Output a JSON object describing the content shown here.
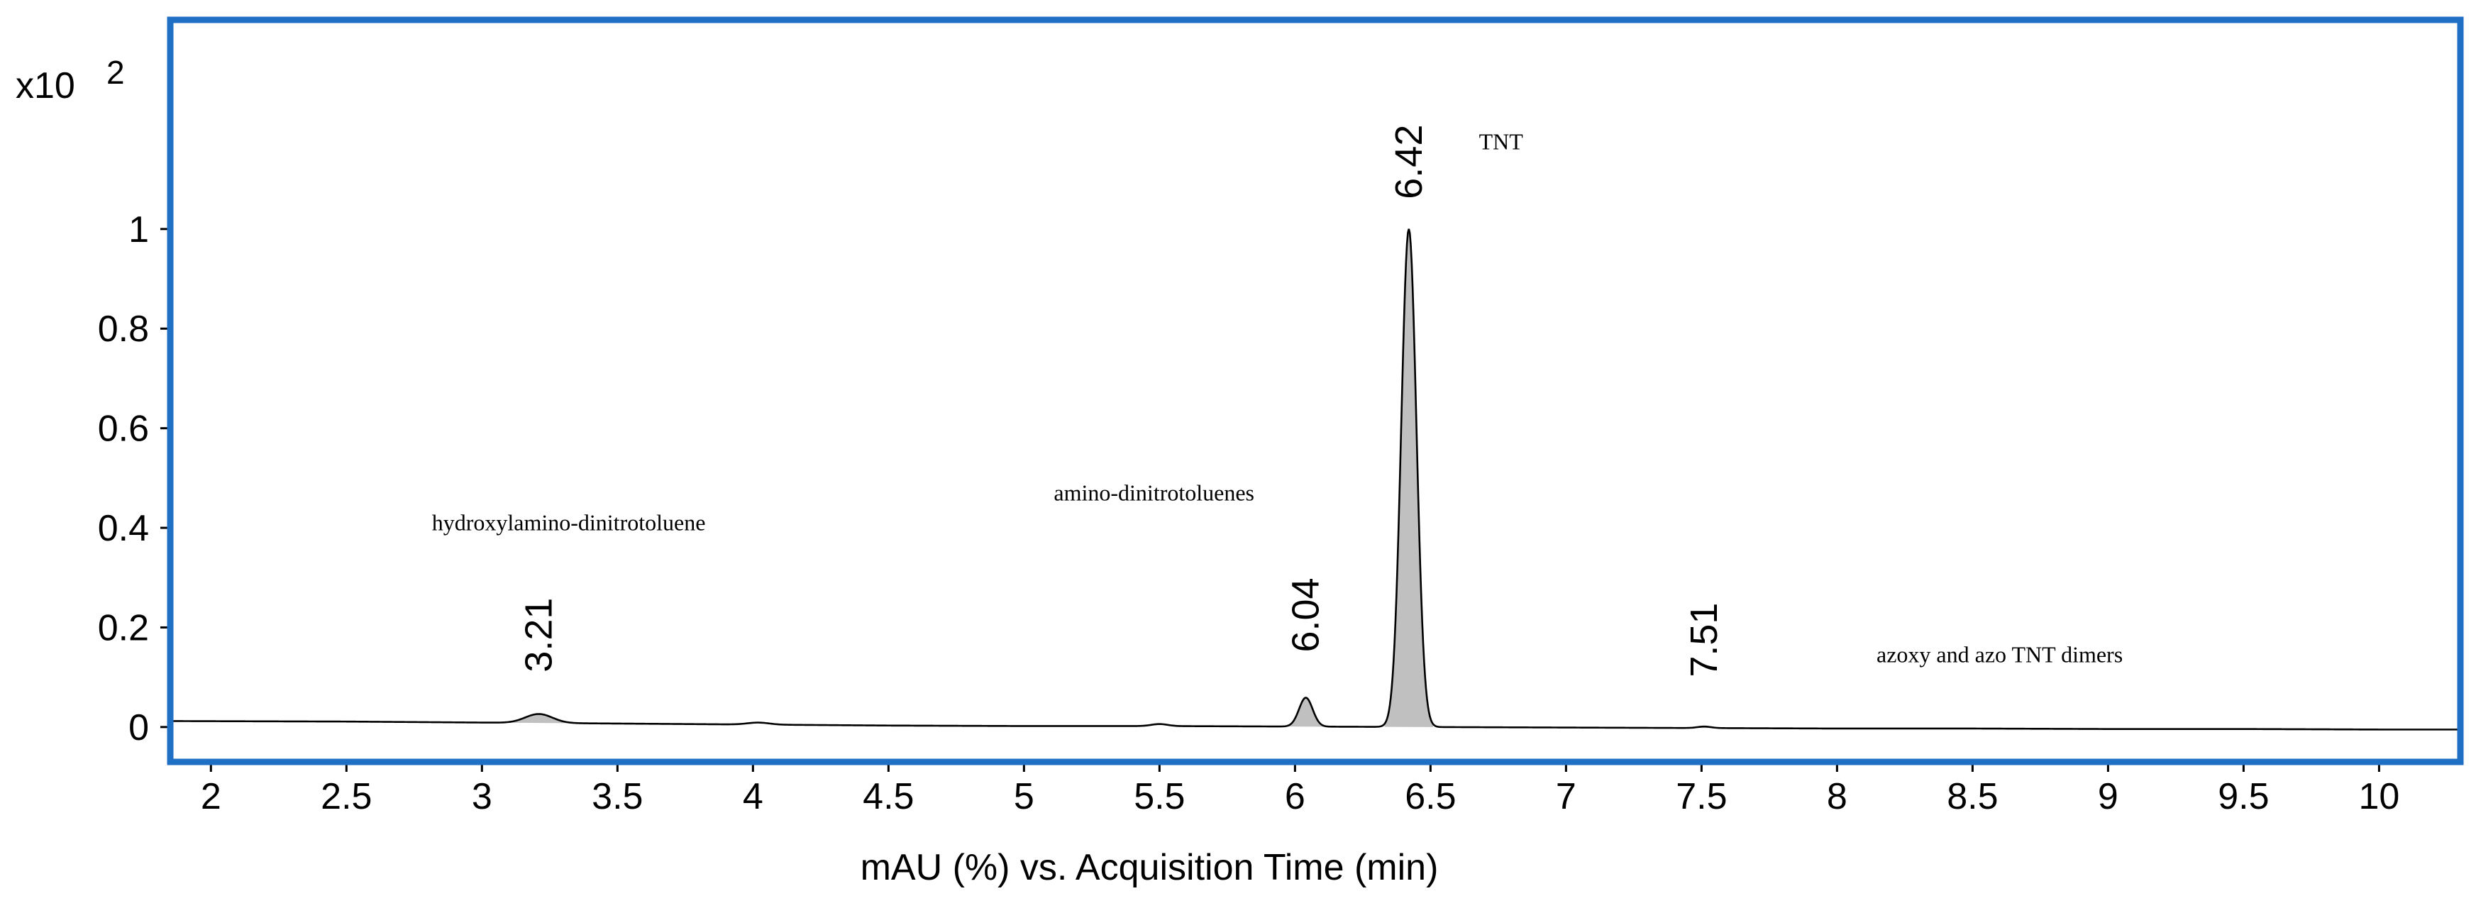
{
  "chart_data": {
    "type": "line",
    "title": "",
    "xlabel": "mAU (%) vs. Acquisition Time (min)",
    "ylabel": "",
    "y_multiplier_label": "x10",
    "y_multiplier_exponent": "2",
    "xlim": [
      1.85,
      10.3
    ],
    "ylim": [
      -0.07,
      1.42
    ],
    "x_ticks": [
      2,
      2.5,
      3,
      3.5,
      4,
      4.5,
      5,
      5.5,
      6,
      6.5,
      7,
      7.5,
      8,
      8.5,
      9,
      9.5,
      10
    ],
    "x_tick_labels": [
      "2",
      "2.5",
      "3",
      "3.5",
      "4",
      "4.5",
      "5",
      "5.5",
      "6",
      "6.5",
      "7",
      "7.5",
      "8",
      "8.5",
      "9",
      "9.5",
      "10"
    ],
    "y_ticks": [
      0,
      0.2,
      0.4,
      0.6,
      0.8,
      1
    ],
    "y_tick_labels": [
      "0",
      "0.2",
      "0.4",
      "0.6",
      "0.8",
      "1"
    ],
    "grid": false,
    "legend": "none",
    "frame_color": "#1f6fc5",
    "peak_fill_color": "#c0c0c0",
    "line_color": "#000000",
    "baseline": {
      "x": [
        1.85,
        2.5,
        3.0,
        3.5,
        4.0,
        4.5,
        5.0,
        5.5,
        6.0,
        6.5,
        7.0,
        7.5,
        8.0,
        8.5,
        9.0,
        9.5,
        10.0,
        10.3
      ],
      "y": [
        0.012,
        0.011,
        0.009,
        0.007,
        0.005,
        0.003,
        0.002,
        0.002,
        0.001,
        0.0,
        -0.001,
        -0.002,
        -0.003,
        -0.003,
        -0.004,
        -0.004,
        -0.005,
        -0.005
      ]
    },
    "peaks": [
      {
        "rt": 3.21,
        "height": 0.018,
        "width": 0.05,
        "label": "3.21",
        "label_y": 0.11,
        "filled": true
      },
      {
        "rt": 4.02,
        "height": 0.004,
        "width": 0.04,
        "label": "",
        "label_y": 0,
        "filled": false
      },
      {
        "rt": 5.5,
        "height": 0.004,
        "width": 0.03,
        "label": "",
        "label_y": 0,
        "filled": false
      },
      {
        "rt": 6.04,
        "height": 0.058,
        "width": 0.025,
        "label": "6.04",
        "label_y": 0.15,
        "filled": true
      },
      {
        "rt": 6.42,
        "height": 1.0,
        "width": 0.028,
        "label": "6.42",
        "label_y": 1.06,
        "filled": true
      },
      {
        "rt": 7.51,
        "height": 0.003,
        "width": 0.025,
        "label": "7.51",
        "label_y": 0.1,
        "filled": true
      }
    ],
    "annotations": [
      {
        "text": "TNT",
        "x": 6.76,
        "y": 1.16
      },
      {
        "text": "hydroxylamino-dinitrotoluene",
        "x": 3.32,
        "y": 0.395
      },
      {
        "text": "amino-dinitrotoluenes",
        "x": 5.48,
        "y": 0.455
      },
      {
        "text": "azoxy and azo TNT dimers",
        "x": 8.6,
        "y": 0.13
      }
    ]
  }
}
